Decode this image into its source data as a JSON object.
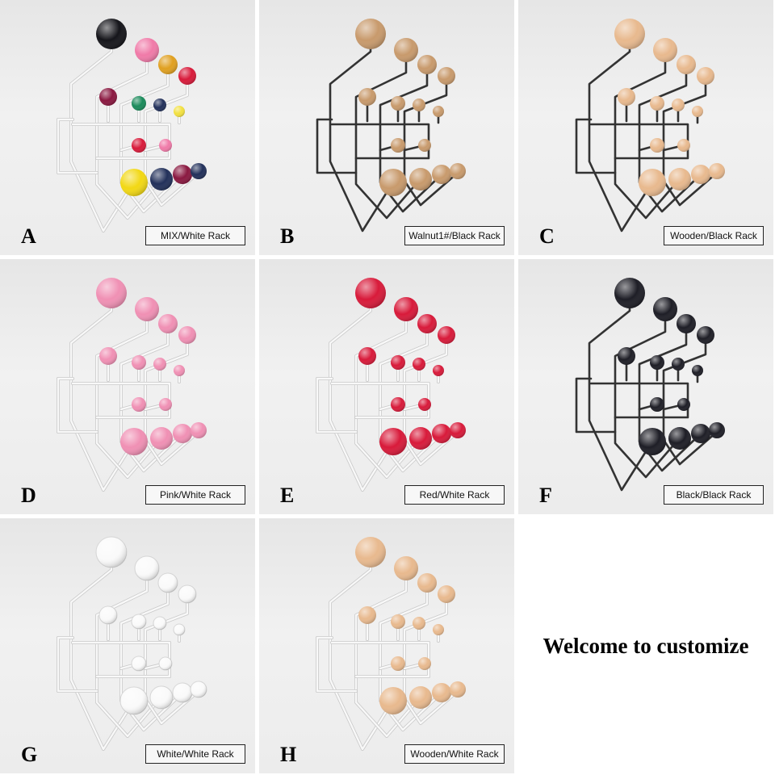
{
  "tiles": [
    {
      "letter": "A",
      "caption": "MIX/White Rack",
      "rack": "white",
      "balls": "mix"
    },
    {
      "letter": "B",
      "caption": "Walnut1#/Black Rack",
      "rack": "black",
      "balls": "walnut"
    },
    {
      "letter": "C",
      "caption": "Wooden/Black Rack",
      "rack": "black",
      "balls": "wood"
    },
    {
      "letter": "D",
      "caption": "Pink/White Rack",
      "rack": "white",
      "balls": "pink"
    },
    {
      "letter": "E",
      "caption": "Red/White Rack",
      "rack": "white",
      "balls": "red"
    },
    {
      "letter": "F",
      "caption": "Black/Black Rack",
      "rack": "black",
      "balls": "black"
    },
    {
      "letter": "G",
      "caption": "White/White Rack",
      "rack": "white",
      "balls": "white"
    },
    {
      "letter": "H",
      "caption": "Wooden/White Rack",
      "rack": "white",
      "balls": "wood"
    }
  ],
  "welcome_text": "Welcome to customize",
  "colors": {
    "rack_white": "#f8f8f8",
    "rack_black": "#333333",
    "pink": "#f090b4",
    "red": "#d81a3a",
    "black": "#1e1e26",
    "white": "#fafafa",
    "walnut": "#c89a6c",
    "wood": "#e8b98e",
    "mix": [
      "#15151a",
      "#f07aa8",
      "#e0a020",
      "#d81a3a",
      "#8a1840",
      "#1a8a5a",
      "#22305a",
      "#f2e040",
      "#d81a3a",
      "#f07aa8",
      "#f2d814",
      "#22305a",
      "#8a1840",
      "#22305a"
    ]
  }
}
